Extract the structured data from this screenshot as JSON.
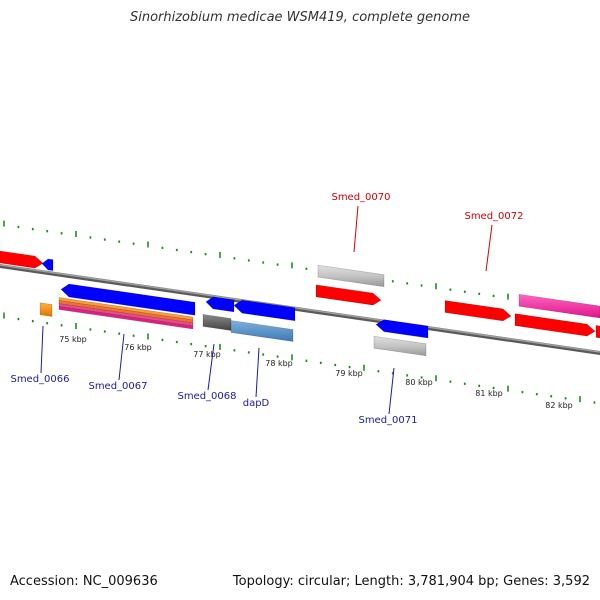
{
  "title": "Sinorhizobium medicae WSM419, complete genome",
  "footer": {
    "accession_label": "Accession: NC_009636",
    "stats_text": "Topology: circular; Length: 3,781,904 bp; Genes: 3,592"
  },
  "colors": {
    "label_forward": "#d40000",
    "label_reverse": "#1a1aa6",
    "backbone": "#808080",
    "tick": "#228b22"
  },
  "genes": [
    {
      "id": "g_left_red",
      "label": "",
      "color": "#ff0000",
      "strand": "forward"
    },
    {
      "id": "g0066",
      "label": "Smed_0066",
      "color": "#0000ff",
      "strand": "reverse"
    },
    {
      "id": "g0067",
      "label": "Smed_0067",
      "color": "#0000ff",
      "strand": "reverse"
    },
    {
      "id": "g0068",
      "label": "Smed_0068",
      "color": "#0000ff",
      "strand": "reverse"
    },
    {
      "id": "gdapD",
      "label": "dapD",
      "color": "#0000ff",
      "strand": "reverse"
    },
    {
      "id": "g0070",
      "label": "Smed_0070",
      "color": "#ff0000",
      "strand": "forward"
    },
    {
      "id": "g0071",
      "label": "Smed_0071",
      "color": "#0000ff",
      "strand": "reverse"
    },
    {
      "id": "g0072",
      "label": "Smed_0072",
      "color": "#ff0000",
      "strand": "forward"
    },
    {
      "id": "g_right_red",
      "label": "",
      "color": "#ff0000",
      "strand": "forward"
    }
  ],
  "ticks": [
    "75 kbp",
    "76 kbp",
    "77 kbp",
    "78 kbp",
    "79 kbp",
    "80 kbp",
    "81 kbp",
    "82 kbp"
  ]
}
